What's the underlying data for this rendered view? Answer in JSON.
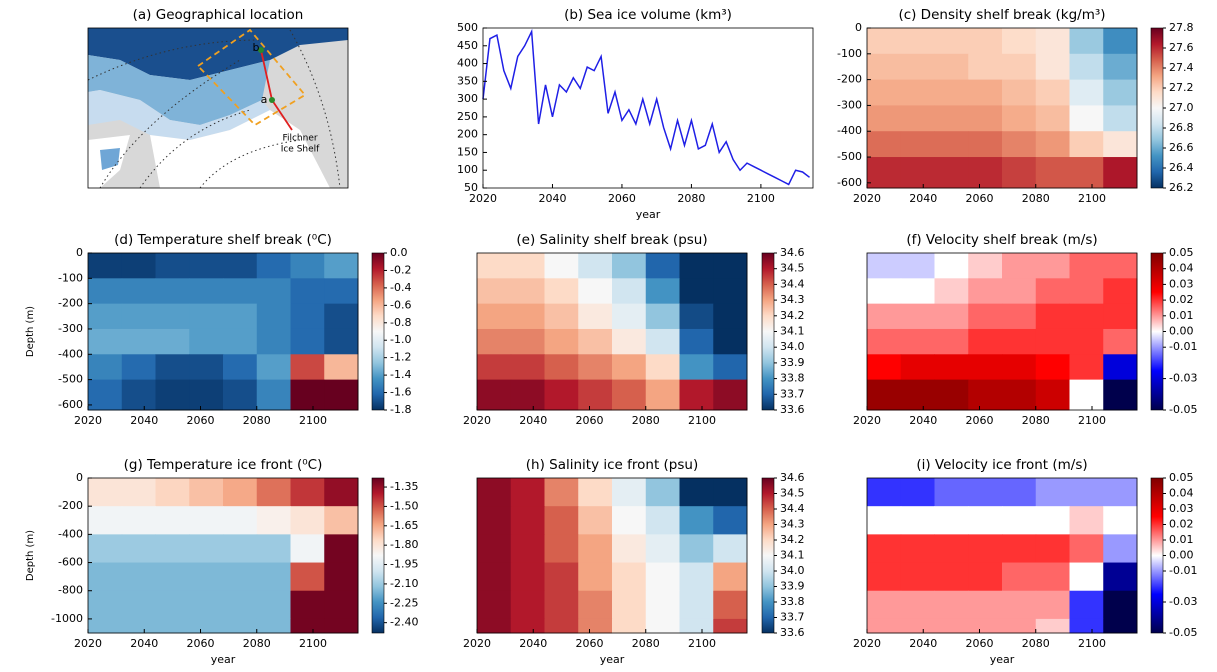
{
  "chart_data": [
    {
      "type": "map",
      "title": "(a) Geographical location",
      "labels": [
        "a",
        "b",
        "Filchner",
        "Ice Shelf"
      ]
    },
    {
      "type": "line",
      "title": "(b) Sea ice volume (km³)",
      "xlabel": "year",
      "color": "#1f1fe6",
      "x": [
        2020,
        2022,
        2024,
        2026,
        2028,
        2030,
        2032,
        2034,
        2036,
        2038,
        2040,
        2042,
        2044,
        2046,
        2048,
        2050,
        2052,
        2054,
        2056,
        2058,
        2060,
        2062,
        2064,
        2066,
        2068,
        2070,
        2072,
        2074,
        2076,
        2078,
        2080,
        2082,
        2084,
        2086,
        2088,
        2090,
        2092,
        2094,
        2096,
        2098,
        2100,
        2102,
        2104,
        2106,
        2108,
        2110,
        2112,
        2114
      ],
      "values": [
        300,
        470,
        480,
        380,
        330,
        420,
        450,
        490,
        230,
        340,
        250,
        340,
        320,
        360,
        330,
        390,
        380,
        420,
        260,
        320,
        240,
        270,
        230,
        300,
        230,
        300,
        220,
        160,
        240,
        170,
        240,
        160,
        170,
        230,
        150,
        180,
        130,
        100,
        120,
        110,
        100,
        90,
        80,
        70,
        60,
        100,
        95,
        80
      ],
      "xlim": [
        2020,
        2115
      ],
      "ylim": [
        50,
        500
      ],
      "xticks": [
        2020,
        2040,
        2060,
        2080,
        2100
      ],
      "yticks": [
        50,
        100,
        150,
        200,
        250,
        300,
        350,
        400,
        450,
        500
      ]
    },
    {
      "type": "heatmap",
      "title": "(c) Density shelf break (kg/m³)",
      "colormap": "RdBu_r",
      "x_edges": [
        2020,
        2032,
        2044,
        2056,
        2068,
        2080,
        2092,
        2104,
        2116
      ],
      "y_edges": [
        0,
        -100,
        -200,
        -300,
        -400,
        -500,
        -620
      ],
      "z": [
        [
          27.2,
          27.2,
          27.2,
          27.2,
          27.15,
          27.1,
          26.7,
          26.5
        ],
        [
          27.25,
          27.25,
          27.25,
          27.2,
          27.2,
          27.1,
          26.8,
          26.6
        ],
        [
          27.3,
          27.3,
          27.3,
          27.3,
          27.25,
          27.2,
          26.9,
          26.7
        ],
        [
          27.35,
          27.35,
          27.35,
          27.35,
          27.3,
          27.25,
          27.0,
          26.8
        ],
        [
          27.45,
          27.45,
          27.45,
          27.45,
          27.4,
          27.35,
          27.2,
          27.1
        ],
        [
          27.6,
          27.6,
          27.6,
          27.6,
          27.55,
          27.5,
          27.5,
          27.65
        ]
      ],
      "xlim": [
        2020,
        2116
      ],
      "ylim": [
        -620,
        0
      ],
      "xticks": [
        2020,
        2040,
        2060,
        2080,
        2100
      ],
      "yticks": [
        0,
        -100,
        -200,
        -300,
        -400,
        -500,
        -600
      ],
      "clim": [
        26.2,
        27.8
      ],
      "cticks": [
        26.2,
        26.4,
        26.6,
        26.8,
        {
          "value": 27,
          "label": "27.0"
        },
        27.2,
        27.4,
        27.6,
        27.8
      ]
    },
    {
      "type": "heatmap",
      "title": "(d) Temperature shelf break (⁰C)",
      "ylabel": "Depth (m)",
      "colormap": "RdBu_r",
      "x_edges": [
        2020,
        2032,
        2044,
        2056,
        2068,
        2080,
        2092,
        2104,
        2116
      ],
      "y_edges": [
        0,
        -100,
        -200,
        -300,
        -400,
        -500,
        -620
      ],
      "z": [
        [
          -1.75,
          -1.75,
          -1.7,
          -1.7,
          -1.7,
          -1.6,
          -1.5,
          -1.4
        ],
        [
          -1.5,
          -1.5,
          -1.5,
          -1.5,
          -1.5,
          -1.5,
          -1.6,
          -1.6
        ],
        [
          -1.4,
          -1.4,
          -1.4,
          -1.4,
          -1.4,
          -1.5,
          -1.6,
          -1.7
        ],
        [
          -1.35,
          -1.35,
          -1.35,
          -1.4,
          -1.4,
          -1.5,
          -1.6,
          -1.7
        ],
        [
          -1.5,
          -1.6,
          -1.7,
          -1.7,
          -1.6,
          -1.4,
          -0.3,
          -0.6
        ],
        [
          -1.6,
          -1.7,
          -1.75,
          -1.75,
          -1.7,
          -1.5,
          0,
          0
        ]
      ],
      "xlim": [
        2020,
        2116
      ],
      "ylim": [
        -620,
        0
      ],
      "xticks": [
        2020,
        2040,
        2060,
        2080,
        2100
      ],
      "yticks": [
        0,
        -100,
        -200,
        -300,
        -400,
        -500,
        -600
      ],
      "clim": [
        -1.8,
        0
      ],
      "cticks": [
        {
          "value": 0,
          "label": "0.0"
        },
        -0.2,
        -0.4,
        -0.6,
        -0.8,
        {
          "value": -1,
          "label": "-1.0"
        },
        -1.2,
        -1.4,
        -1.6,
        -1.8
      ]
    },
    {
      "type": "heatmap",
      "title": "(e) Salinity shelf break (psu)",
      "colormap": "RdBu_r",
      "x_edges": [
        2020,
        2032,
        2044,
        2056,
        2068,
        2080,
        2092,
        2104,
        2116
      ],
      "y_edges": [
        0,
        -100,
        -200,
        -300,
        -400,
        -500,
        -620
      ],
      "z": [
        [
          34.2,
          34.2,
          34.1,
          34.0,
          33.9,
          33.7,
          33.6,
          33.6
        ],
        [
          34.25,
          34.25,
          34.2,
          34.1,
          34.0,
          33.8,
          33.6,
          33.6
        ],
        [
          34.3,
          34.3,
          34.25,
          34.15,
          34.05,
          33.9,
          33.65,
          33.6
        ],
        [
          34.35,
          34.35,
          34.3,
          34.25,
          34.15,
          34.0,
          33.7,
          33.6
        ],
        [
          34.45,
          34.45,
          34.4,
          34.35,
          34.3,
          34.2,
          33.8,
          33.7
        ],
        [
          34.55,
          34.55,
          34.5,
          34.45,
          34.4,
          34.3,
          34.5,
          34.55
        ]
      ],
      "xlim": [
        2020,
        2116
      ],
      "ylim": [
        -620,
        0
      ],
      "xticks": [
        2020,
        2040,
        2060,
        2080,
        2100
      ],
      "clim": [
        33.6,
        34.6
      ],
      "cticks": [
        33.6,
        33.7,
        33.8,
        33.9,
        {
          "value": 34,
          "label": "34.0"
        },
        34.1,
        34.2,
        34.3,
        34.4,
        34.5,
        34.6
      ]
    },
    {
      "type": "heatmap",
      "title": "(f) Velocity shelf break (m/s)",
      "colormap": "seismic",
      "x_edges": [
        2020,
        2032,
        2044,
        2056,
        2068,
        2080,
        2092,
        2104,
        2116
      ],
      "y_edges": [
        0,
        -100,
        -200,
        -300,
        -400,
        -500,
        -620
      ],
      "z": [
        [
          -0.005,
          -0.005,
          0.0,
          0.005,
          0.01,
          0.01,
          0.015,
          0.015
        ],
        [
          0.0,
          0.0,
          0.005,
          0.01,
          0.01,
          0.015,
          0.015,
          0.02
        ],
        [
          0.01,
          0.01,
          0.01,
          0.015,
          0.015,
          0.02,
          0.02,
          0.02
        ],
        [
          0.015,
          0.015,
          0.015,
          0.02,
          0.02,
          0.02,
          0.02,
          0.015
        ],
        [
          0.025,
          0.03,
          0.03,
          0.03,
          0.03,
          0.025,
          0.02,
          -0.03
        ],
        [
          0.045,
          0.045,
          0.045,
          0.04,
          0.04,
          0.035,
          0.0,
          -0.05
        ]
      ],
      "xlim": [
        2020,
        2116
      ],
      "ylim": [
        -620,
        0
      ],
      "xticks": [
        2020,
        2040,
        2060,
        2080,
        2100
      ],
      "clim": [
        -0.05,
        0.05
      ],
      "cticks": [
        0.05,
        0.04,
        0.03,
        0.02,
        0.01,
        {
          "value": 0,
          "label": "0.00"
        },
        -0.01,
        -0.03,
        -0.05
      ]
    },
    {
      "type": "heatmap",
      "title": "(g) Temperature ice front (⁰C)",
      "xlabel": "year",
      "ylabel": "Depth (m)",
      "colormap": "RdBu_r",
      "x_edges": [
        2020,
        2032,
        2044,
        2056,
        2068,
        2080,
        2092,
        2104,
        2116
      ],
      "y_edges": [
        0,
        -200,
        -400,
        -600,
        -800,
        -1000,
        -1100
      ],
      "z": [
        [
          -1.8,
          -1.8,
          -1.75,
          -1.7,
          -1.65,
          -1.55,
          -1.45,
          -1.35
        ],
        [
          -1.9,
          -1.9,
          -1.9,
          -1.9,
          -1.9,
          -1.85,
          -1.8,
          -1.7
        ],
        [
          -2.1,
          -2.1,
          -2.1,
          -2.1,
          -2.1,
          -2.1,
          -1.9,
          -1.3
        ],
        [
          -2.15,
          -2.15,
          -2.15,
          -2.15,
          -2.15,
          -2.15,
          -1.5,
          -1.3
        ],
        [
          -2.15,
          -2.15,
          -2.15,
          -2.15,
          -2.15,
          -2.15,
          -1.3,
          -1.3
        ],
        [
          -2.15,
          -2.15,
          -2.15,
          -2.15,
          -2.15,
          -2.15,
          -1.3,
          -1.3
        ]
      ],
      "xlim": [
        2020,
        2116
      ],
      "ylim": [
        -1100,
        0
      ],
      "xticks": [
        2020,
        2040,
        2060,
        2080,
        2100
      ],
      "yticks": [
        0,
        -200,
        -400,
        -600,
        -800,
        -1000
      ],
      "clim": [
        -2.48,
        -1.28
      ],
      "cticks": [
        -1.35,
        {
          "value": -1.5,
          "label": "-1.50"
        },
        -1.65,
        {
          "value": -1.8,
          "label": "-1.80"
        },
        -1.95,
        {
          "value": -2.1,
          "label": "-2.10"
        },
        -2.25,
        {
          "value": -2.4,
          "label": "-2.40"
        }
      ]
    },
    {
      "type": "heatmap",
      "title": "(h) Salinity ice front (psu)",
      "xlabel": "year",
      "colormap": "RdBu_r",
      "x_edges": [
        2020,
        2032,
        2044,
        2056,
        2068,
        2080,
        2092,
        2104,
        2116
      ],
      "y_edges": [
        0,
        -200,
        -400,
        -600,
        -800,
        -1000,
        -1100
      ],
      "z": [
        [
          34.55,
          34.5,
          34.35,
          34.2,
          34.05,
          33.9,
          33.6,
          33.6
        ],
        [
          34.55,
          34.5,
          34.4,
          34.25,
          34.1,
          34.0,
          33.8,
          33.7
        ],
        [
          34.55,
          34.5,
          34.4,
          34.3,
          34.15,
          34.05,
          33.9,
          34.0
        ],
        [
          34.55,
          34.5,
          34.45,
          34.3,
          34.2,
          34.1,
          34.0,
          34.3
        ],
        [
          34.55,
          34.5,
          34.45,
          34.35,
          34.2,
          34.1,
          34.0,
          34.4
        ],
        [
          34.55,
          34.5,
          34.45,
          34.35,
          34.2,
          34.1,
          34.0,
          34.45
        ]
      ],
      "xlim": [
        2020,
        2116
      ],
      "ylim": [
        -1100,
        0
      ],
      "xticks": [
        2020,
        2040,
        2060,
        2080,
        2100
      ],
      "clim": [
        33.6,
        34.6
      ],
      "cticks": [
        33.6,
        33.7,
        33.8,
        33.9,
        {
          "value": 34,
          "label": "34.0"
        },
        34.1,
        34.2,
        34.3,
        34.4,
        34.5,
        34.6
      ]
    },
    {
      "type": "heatmap",
      "title": "(i) Velocity ice front (m/s)",
      "xlabel": "year",
      "colormap": "seismic",
      "x_edges": [
        2020,
        2032,
        2044,
        2056,
        2068,
        2080,
        2092,
        2104,
        2116
      ],
      "y_edges": [
        0,
        -200,
        -400,
        -600,
        -800,
        -1000,
        -1100
      ],
      "z": [
        [
          -0.02,
          -0.02,
          -0.015,
          -0.015,
          -0.015,
          -0.01,
          -0.01,
          -0.01
        ],
        [
          0.0,
          0.0,
          0.0,
          0.0,
          0.0,
          0.0,
          0.005,
          0.0
        ],
        [
          0.02,
          0.02,
          0.02,
          0.02,
          0.02,
          0.02,
          0.015,
          -0.01
        ],
        [
          0.02,
          0.02,
          0.02,
          0.02,
          0.015,
          0.015,
          0.0,
          -0.04
        ],
        [
          0.01,
          0.01,
          0.01,
          0.01,
          0.01,
          0.01,
          -0.02,
          -0.05
        ],
        [
          0.01,
          0.01,
          0.01,
          0.01,
          0.01,
          0.005,
          -0.02,
          -0.05
        ]
      ],
      "xlim": [
        2020,
        2116
      ],
      "ylim": [
        -1100,
        0
      ],
      "xticks": [
        2020,
        2040,
        2060,
        2080,
        2100
      ],
      "clim": [
        -0.05,
        0.05
      ],
      "cticks": [
        0.05,
        0.04,
        0.03,
        0.02,
        0.01,
        {
          "value": 0,
          "label": "0.00"
        },
        -0.01,
        -0.03,
        -0.05
      ]
    }
  ]
}
